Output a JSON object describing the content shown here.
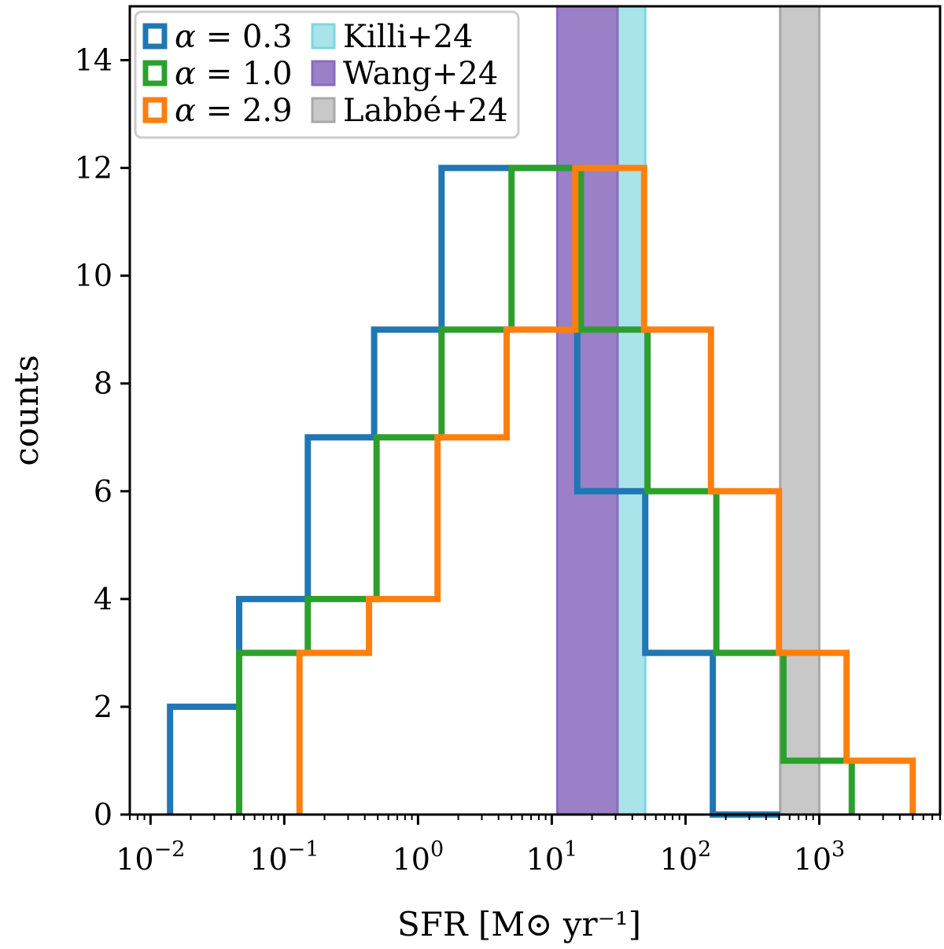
{
  "chart_data": {
    "type": "histogram",
    "xscale": "log",
    "xlim": [
      0.007,
      8000
    ],
    "ylim": [
      0,
      15
    ],
    "xlabel": "SFR [M⊙ yr⁻¹]",
    "ylabel": "counts",
    "x_ticks": [
      {
        "value": 0.01,
        "base": "10",
        "exp": "−2"
      },
      {
        "value": 0.1,
        "base": "10",
        "exp": "−1"
      },
      {
        "value": 1,
        "base": "10",
        "exp": "0"
      },
      {
        "value": 10,
        "base": "10",
        "exp": "1"
      },
      {
        "value": 100,
        "base": "10",
        "exp": "2"
      },
      {
        "value": 1000,
        "base": "10",
        "exp": "3"
      }
    ],
    "y_ticks": [
      0,
      2,
      4,
      6,
      8,
      10,
      12,
      14
    ],
    "series": [
      {
        "name": "α = 0.3",
        "color": "#1f77b4",
        "bin_edges": [
          0.014,
          0.046,
          0.15,
          0.47,
          1.5,
          4.8,
          15.5,
          50,
          160,
          510
        ],
        "counts": [
          2,
          4,
          7,
          9,
          12,
          12,
          6,
          3,
          0
        ]
      },
      {
        "name": "α = 1.0",
        "color": "#2ca02c",
        "bin_edges": [
          0.046,
          0.15,
          0.49,
          1.5,
          5.0,
          16.5,
          52,
          170,
          540,
          1750
        ],
        "counts": [
          3,
          4,
          7,
          9,
          12,
          9,
          6,
          3,
          1
        ]
      },
      {
        "name": "α = 2.9",
        "color": "#ff7f0e",
        "bin_edges": [
          0.13,
          0.43,
          1.4,
          4.6,
          15,
          49,
          155,
          500,
          1600,
          5000
        ],
        "counts": [
          3,
          4,
          7,
          9,
          12,
          9,
          6,
          3,
          1
        ]
      }
    ],
    "bands": [
      {
        "name": "Killi+24",
        "x0": 11,
        "x1": 50,
        "color": "#a8e4ea",
        "edge": "#7fd6df"
      },
      {
        "name": "Wang+24",
        "x0": 11,
        "x1": 31,
        "color": "#9b80c7",
        "edge": "#8a6bbd"
      },
      {
        "name": "Labbé+24",
        "x0": 510,
        "x1": 1000,
        "color": "#c8c8c8",
        "edge": "#a8a8a8"
      }
    ],
    "legend": {
      "position": "top-left",
      "columns": [
        [
          {
            "symbol": "α",
            "text": " = 0.3",
            "color": "#1f77b4",
            "style": "outline"
          },
          {
            "symbol": "α",
            "text": " = 1.0",
            "color": "#2ca02c",
            "style": "outline"
          },
          {
            "symbol": "α",
            "text": " = 2.9",
            "color": "#ff7f0e",
            "style": "outline"
          }
        ],
        [
          {
            "symbol": "",
            "text": "Killi+24",
            "color": "#a8e4ea",
            "edge": "#7fd6df",
            "style": "filled"
          },
          {
            "symbol": "",
            "text": "Wang+24",
            "color": "#9b80c7",
            "edge": "#8a6bbd",
            "style": "filled"
          },
          {
            "symbol": "",
            "text": "Labbé+24",
            "color": "#c8c8c8",
            "edge": "#a8a8a8",
            "style": "filled"
          }
        ]
      ]
    }
  }
}
